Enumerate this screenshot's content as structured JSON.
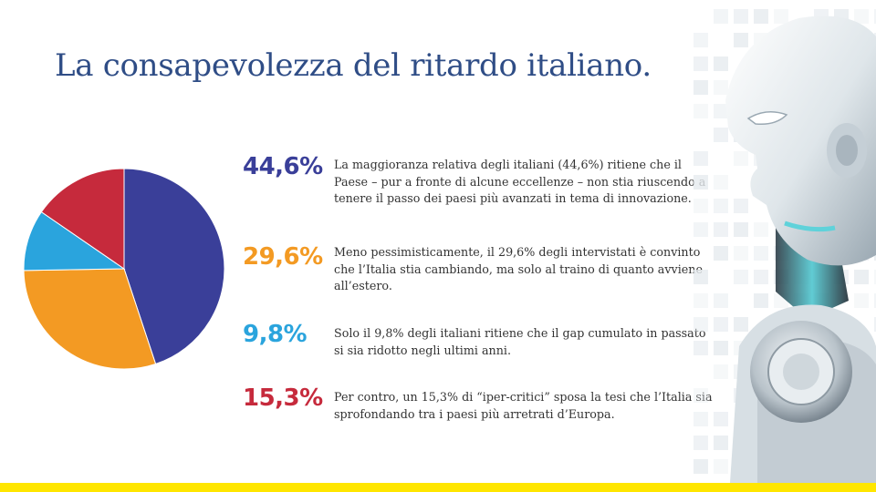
{
  "slide": {
    "title": "La consapevolezza del ritardo italiano."
  },
  "items": [
    {
      "value_label": "44,6%",
      "color": "#3a3f99",
      "text": "La maggioranza relativa degli italiani (44,6%) ritiene che il Paese – pur a fronte di alcune eccellenze – non stia riuscendo a tenere il passo dei paesi più avanzati in tema di innovazione."
    },
    {
      "value_label": "29,6%",
      "color": "#f39a23",
      "text": "Meno pessimisticamente, il 29,6% degli intervistati è convinto che l’Italia stia cambiando, ma solo al traino di quanto avviene all’estero."
    },
    {
      "value_label": "9,8%",
      "color": "#2aa4dd",
      "text": "Solo il 9,8% degli italiani ritiene che il gap cumulato in passato si sia ridotto negli ultimi anni."
    },
    {
      "value_label": "15,3%",
      "color": "#c62a3c",
      "text": "Per contro, un 15,3% di “iper-critici” sposa la tesi che l’Italia sia sprofondando tra i paesi più arretrati d’Europa."
    }
  ],
  "chart_data": {
    "type": "pie",
    "categories": [
      "44,6%",
      "29,6%",
      "9,8%",
      "15,3%"
    ],
    "values": [
      44.6,
      29.6,
      9.8,
      15.3
    ],
    "colors": [
      "#3a3f99",
      "#f39a23",
      "#2aa4dd",
      "#c62a3c"
    ],
    "start_angle": "top",
    "direction": "clockwise"
  },
  "theme": {
    "accent_yellow": "#ffe600",
    "title_color": "#2f4d86"
  },
  "decoration": {
    "image_icon": "robot-head-icon"
  }
}
